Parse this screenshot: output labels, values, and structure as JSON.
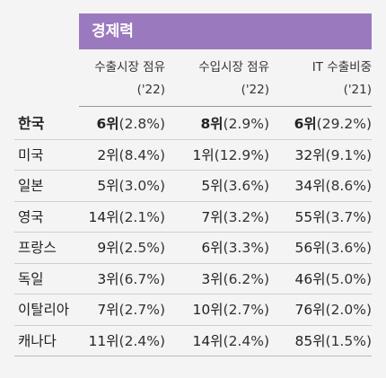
{
  "section_title": "경제력",
  "columns": [
    {
      "line1": "수출시장 점유",
      "line2": "('22)"
    },
    {
      "line1": "수입시장 점유",
      "line2": "('22)"
    },
    {
      "line1": "IT 수출비중",
      "line2": "('21)"
    }
  ],
  "rows": [
    {
      "country": "한국",
      "export_rank": "6위",
      "export_pct": "(2.8%)",
      "import_rank": "8위",
      "import_pct": "(2.9%)",
      "it_rank": "6위",
      "it_pct": "(29.2%)"
    },
    {
      "country": "미국",
      "export_rank": "2위",
      "export_pct": "(8.4%)",
      "import_rank": "1위",
      "import_pct": "(12.9%)",
      "it_rank": "32위",
      "it_pct": "(9.1%)"
    },
    {
      "country": "일본",
      "export_rank": "5위",
      "export_pct": "(3.0%)",
      "import_rank": "5위",
      "import_pct": "(3.6%)",
      "it_rank": "34위",
      "it_pct": "(8.6%)"
    },
    {
      "country": "영국",
      "export_rank": "14위",
      "export_pct": "(2.1%)",
      "import_rank": "7위",
      "import_pct": "(3.2%)",
      "it_rank": "55위",
      "it_pct": "(3.7%)"
    },
    {
      "country": "프랑스",
      "export_rank": "9위",
      "export_pct": "(2.5%)",
      "import_rank": "6위",
      "import_pct": "(3.3%)",
      "it_rank": "56위",
      "it_pct": "(3.6%)"
    },
    {
      "country": "독일",
      "export_rank": "3위",
      "export_pct": "(6.7%)",
      "import_rank": "3위",
      "import_pct": "(6.2%)",
      "it_rank": "46위",
      "it_pct": "(5.0%)"
    },
    {
      "country": "이탈리아",
      "export_rank": "7위",
      "export_pct": "(2.7%)",
      "import_rank": "10위",
      "import_pct": "(2.7%)",
      "it_rank": "76위",
      "it_pct": "(2.0%)"
    },
    {
      "country": "캐나다",
      "export_rank": "11위",
      "export_pct": "(2.4%)",
      "import_rank": "14위",
      "import_pct": "(2.4%)",
      "it_rank": "85위",
      "it_pct": "(1.5%)"
    }
  ]
}
